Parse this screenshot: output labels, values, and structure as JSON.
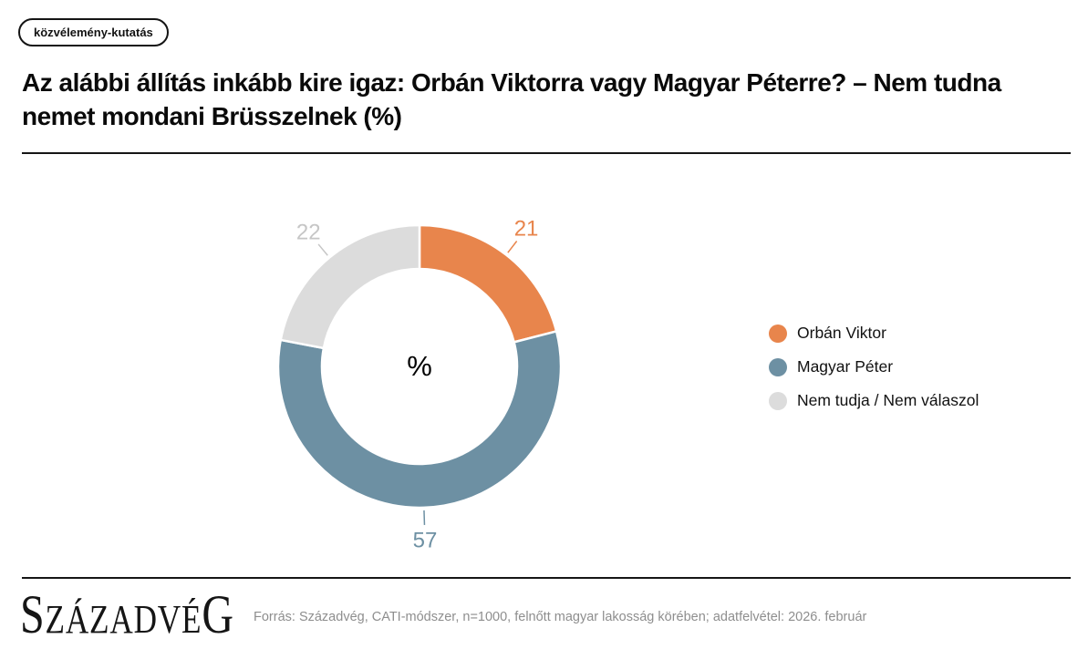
{
  "badge": {
    "label": "közvélemény-kutatás"
  },
  "title": {
    "lines": [
      "Az alábbi állítás inkább kire igaz: Orbán Viktorra vagy Magyar Péterre? – Nem tudna",
      "nemet mondani Brüsszelnek (%)"
    ]
  },
  "chart_data": {
    "type": "pie",
    "donut": true,
    "unit": "%",
    "center_label": "%",
    "labels": [
      "Orbán Viktor",
      "Magyar Péter",
      "Nem tudja / Nem válaszol"
    ],
    "values": [
      21,
      57,
      22
    ],
    "colors": [
      "#E8854C",
      "#6D90A3",
      "#DCDCDC"
    ],
    "value_label_colors": [
      "#E8854C",
      "#6D90A3",
      "#C6C6C6"
    ],
    "start_angle": "top",
    "direction": "clockwise",
    "legend_position": "right"
  },
  "footer": {
    "logo_text": "SZÁZADVÉG",
    "source": "Forrás: Századvég, CATI-módszer, n=1000, felnőtt magyar lakosság körében; adatfelvétel: 2026. február"
  }
}
